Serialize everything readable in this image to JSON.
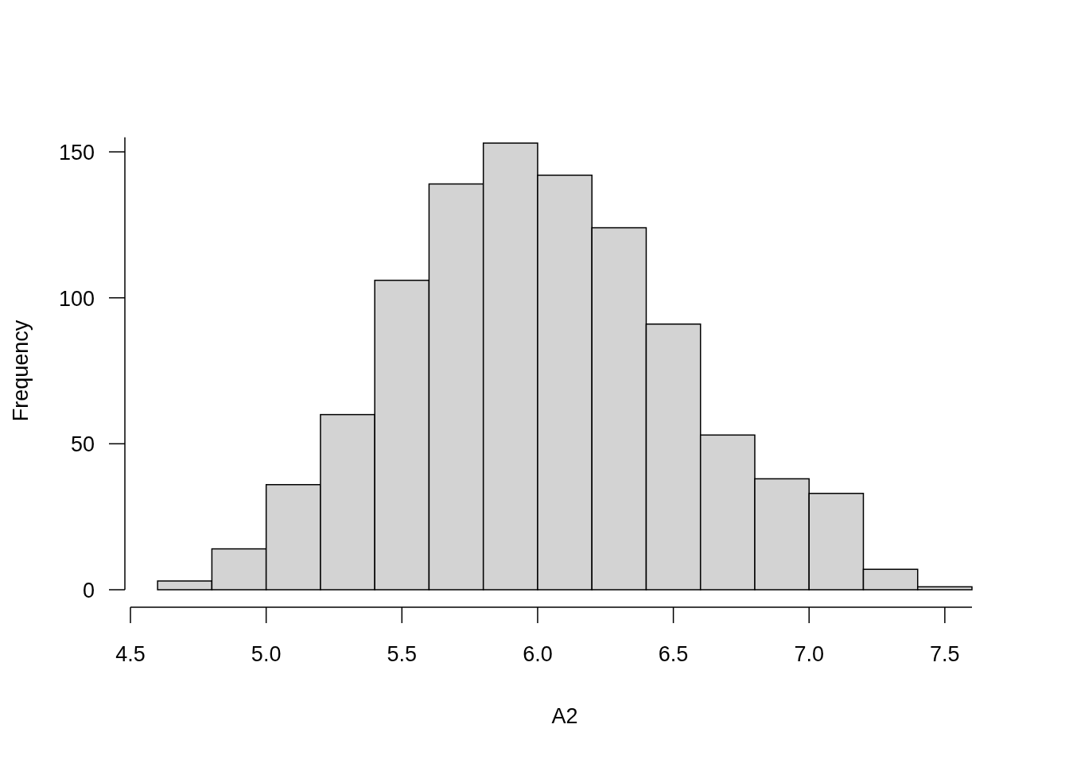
{
  "chart_data": {
    "type": "histogram",
    "xlabel": "A2",
    "ylabel": "Frequency",
    "bins": [
      4.6,
      4.8,
      5.0,
      5.2,
      5.4,
      5.6,
      5.8,
      6.0,
      6.2,
      6.4,
      6.6,
      6.8,
      7.0,
      7.2,
      7.4,
      7.6
    ],
    "values": [
      3,
      14,
      36,
      60,
      106,
      139,
      153,
      142,
      124,
      91,
      53,
      38,
      33,
      7,
      1
    ],
    "color": "#d3d3d3",
    "xlim": [
      4.5,
      7.6
    ],
    "ylim": [
      0,
      155
    ],
    "xticks": [
      4.5,
      {
        "value": 5,
        "label": "5.0"
      },
      5.5,
      {
        "value": 6,
        "label": "6.0"
      },
      6.5,
      {
        "value": 7,
        "label": "7.0"
      },
      7.5
    ],
    "yticks": [
      0,
      50,
      100,
      150
    ],
    "grid": false
  }
}
